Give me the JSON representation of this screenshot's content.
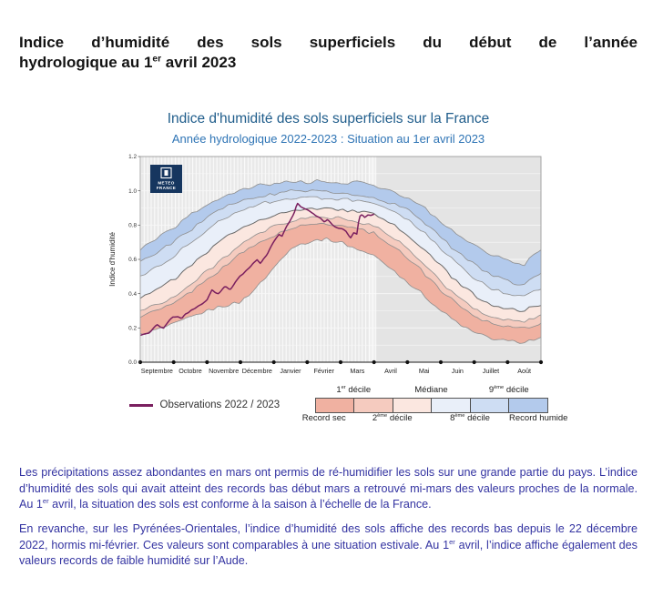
{
  "page": {
    "title": {
      "line1": "Indice d’humidité des sols superficiels du début de l’année",
      "line2_parts": [
        "hydrologique au 1",
        "er",
        " avril 2023"
      ]
    },
    "paragraphs": {
      "p1": [
        "Les précipitations assez abondantes en mars ont permis de ré-humidifier les sols sur une grande partie du pays. L’indice d’humidité des sols qui avait atteint des records bas début mars a retrouvé mi-mars des valeurs proches de la normale. Au 1",
        "er",
        " avril, la situation des sols est conforme à la saison à l’échelle de la France."
      ],
      "p2": [
        "En revanche, sur les Pyrénées-Orientales, l’indice d’humidité des sols affiche des records bas depuis le 22 décembre 2022, hormis mi-février. Ces valeurs sont comparables à une situation estivale. Au 1",
        "er",
        " avril, l’indice affiche également des valeurs records de faible humidité sur l’Aude."
      ]
    }
  },
  "chart": {
    "title": "Indice d'humidité des sols superficiels sur la France",
    "subtitle": "Année hydrologique 2022-2023 : Situation au 1er avril 2023",
    "title_color": "#215E8C",
    "subtitle_color": "#2E74B5",
    "logo": {
      "line1": "METEO",
      "line2": "FRANCE",
      "bg_color": "#16365F"
    },
    "legend": {
      "observations": "Observations 2022 / 2023",
      "top_labels": {
        "d1": [
          "1",
          "er",
          " décile"
        ],
        "median": "Médiane",
        "d9": [
          "9",
          "ème",
          " décile"
        ]
      },
      "bottom_labels": {
        "record_sec": "Record sec",
        "d2": [
          "2",
          "ème",
          " décile"
        ],
        "d8": [
          "8",
          "ème",
          " décile"
        ],
        "record_humide": "Record humide"
      }
    }
  },
  "chart_data": {
    "type": "area",
    "title": "Indice d'humidité des sols superficiels sur la France",
    "subtitle": "Année hydrologique 2022-2023 : Situation au 1er avril 2023",
    "ylabel": "Indice d'humidité",
    "ylim": [
      0,
      1.2
    ],
    "yticks": [
      "0.0",
      "0.2",
      "0.4",
      "0.6",
      "0.8",
      "1.0",
      "1.2"
    ],
    "months": [
      "Septembre",
      "Octobre",
      "Novembre",
      "Décembre",
      "Janvier",
      "Février",
      "Mars",
      "Avril",
      "Mai",
      "Juin",
      "Juillet",
      "Août"
    ],
    "band_colors": [
      "#F0B1A1",
      "#F5CBBF",
      "#FBE7E0",
      "#E9EFF9",
      "#CEDDF3",
      "#B3CAEC"
    ],
    "percentiles": {
      "x": [
        0,
        0.5,
        1,
        1.5,
        2,
        2.5,
        3,
        3.5,
        4,
        4.5,
        5,
        5.5,
        6,
        6.5,
        7,
        7.5,
        8,
        8.5,
        9,
        9.5,
        10,
        10.5,
        11,
        11.5,
        12
      ],
      "record_sec": [
        0.16,
        0.19,
        0.22,
        0.26,
        0.3,
        0.33,
        0.35,
        0.44,
        0.55,
        0.67,
        0.7,
        0.72,
        0.7,
        0.66,
        0.62,
        0.55,
        0.47,
        0.39,
        0.3,
        0.23,
        0.17,
        0.14,
        0.12,
        0.12,
        0.14
      ],
      "decile_1": [
        0.27,
        0.3,
        0.34,
        0.41,
        0.48,
        0.56,
        0.63,
        0.69,
        0.74,
        0.78,
        0.8,
        0.81,
        0.8,
        0.78,
        0.75,
        0.69,
        0.61,
        0.52,
        0.42,
        0.34,
        0.27,
        0.23,
        0.21,
        0.2,
        0.23
      ],
      "decile_2": [
        0.3,
        0.34,
        0.38,
        0.45,
        0.53,
        0.61,
        0.68,
        0.74,
        0.79,
        0.82,
        0.84,
        0.85,
        0.84,
        0.82,
        0.79,
        0.74,
        0.66,
        0.57,
        0.47,
        0.38,
        0.31,
        0.27,
        0.25,
        0.24,
        0.27
      ],
      "mediane": [
        0.38,
        0.43,
        0.48,
        0.56,
        0.64,
        0.72,
        0.78,
        0.83,
        0.86,
        0.88,
        0.89,
        0.9,
        0.89,
        0.88,
        0.86,
        0.81,
        0.74,
        0.66,
        0.56,
        0.47,
        0.39,
        0.34,
        0.31,
        0.3,
        0.34
      ],
      "decile_8": [
        0.5,
        0.56,
        0.62,
        0.7,
        0.77,
        0.84,
        0.89,
        0.92,
        0.94,
        0.95,
        0.96,
        0.96,
        0.95,
        0.94,
        0.92,
        0.88,
        0.83,
        0.76,
        0.66,
        0.57,
        0.49,
        0.43,
        0.4,
        0.38,
        0.43
      ],
      "decile_9": [
        0.58,
        0.64,
        0.7,
        0.77,
        0.84,
        0.9,
        0.94,
        0.97,
        0.98,
        1.0,
        1.0,
        1.0,
        0.99,
        0.98,
        0.96,
        0.93,
        0.89,
        0.82,
        0.73,
        0.64,
        0.57,
        0.51,
        0.47,
        0.45,
        0.52
      ],
      "record_humide": [
        0.66,
        0.72,
        0.78,
        0.86,
        0.92,
        0.97,
        1.0,
        1.03,
        1.04,
        1.06,
        1.05,
        1.06,
        1.04,
        1.05,
        1.03,
        1.0,
        0.96,
        0.9,
        0.82,
        0.74,
        0.68,
        0.63,
        0.6,
        0.57,
        0.66
      ]
    },
    "observations": {
      "name": "Observations 2022 / 2023",
      "color": "#7A1F5F",
      "x": [
        0,
        0.25,
        0.5,
        0.7,
        0.85,
        1,
        1.25,
        1.5,
        1.75,
        2,
        2.15,
        2.35,
        2.5,
        2.7,
        2.85,
        3,
        3.25,
        3.5,
        3.6,
        3.8,
        4,
        4.15,
        4.25,
        4.4,
        4.5,
        4.6,
        4.7,
        4.8,
        5,
        5.15,
        5.25,
        5.4,
        5.5,
        5.6,
        5.75,
        6,
        6.15,
        6.25,
        6.3,
        6.4,
        6.5,
        6.55,
        6.65,
        6.7,
        6.8,
        6.9,
        7
      ],
      "y": [
        0.16,
        0.17,
        0.22,
        0.2,
        0.24,
        0.27,
        0.26,
        0.3,
        0.33,
        0.36,
        0.42,
        0.4,
        0.44,
        0.43,
        0.47,
        0.5,
        0.55,
        0.6,
        0.58,
        0.63,
        0.7,
        0.74,
        0.73,
        0.8,
        0.83,
        0.87,
        0.93,
        0.91,
        0.89,
        0.87,
        0.85,
        0.84,
        0.82,
        0.83,
        0.8,
        0.78,
        0.76,
        0.74,
        0.73,
        0.76,
        0.75,
        0.85,
        0.86,
        0.84,
        0.86,
        0.85,
        0.86
      ]
    },
    "current_date_x": 7,
    "legend_position": "bottom",
    "grid": true
  }
}
